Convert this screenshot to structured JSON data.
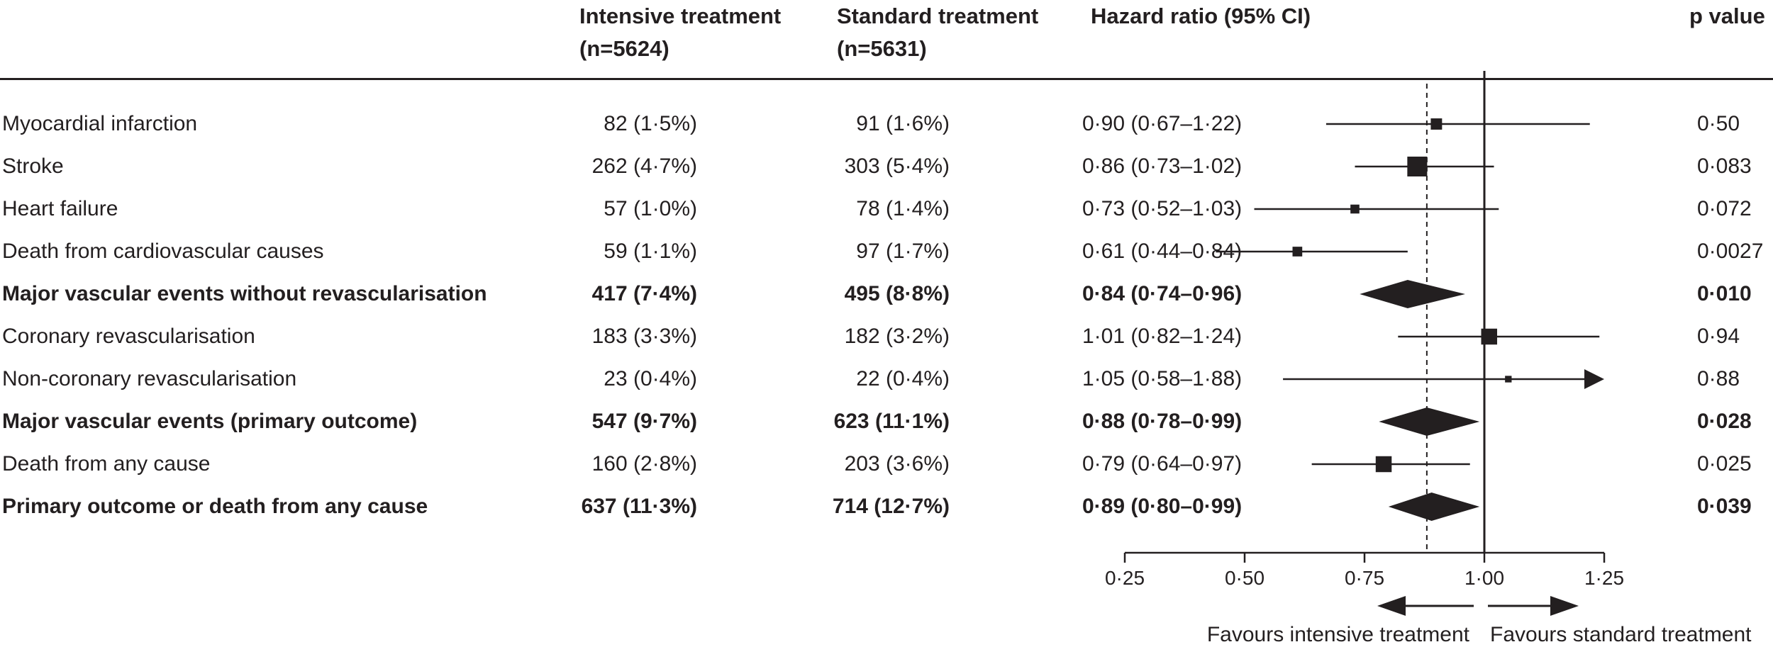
{
  "headers": {
    "intensive": [
      "Intensive treatment",
      "(n=5624)"
    ],
    "standard": [
      "Standard treatment",
      "(n=5631)"
    ],
    "hazard_ratio": "Hazard ratio (95% CI)",
    "p_value": "p value"
  },
  "rows": [
    {
      "label": "Myocardial infarction",
      "intensive": "82 (1·5%)",
      "standard": "91 (1·6%)",
      "hr_text": "0·90 (0·67–1·22)",
      "p": "0·50",
      "bold": false
    },
    {
      "label": "Stroke",
      "intensive": "262 (4·7%)",
      "standard": "303 (5·4%)",
      "hr_text": "0·86 (0·73–1·02)",
      "p": "0·083",
      "bold": false
    },
    {
      "label": "Heart failure",
      "intensive": "57 (1·0%)",
      "standard": "78 (1·4%)",
      "hr_text": "0·73 (0·52–1·03)",
      "p": "0·072",
      "bold": false
    },
    {
      "label": "Death from cardiovascular causes",
      "intensive": "59 (1·1%)",
      "standard": "97 (1·7%)",
      "hr_text": "0·61 (0·44–0·84)",
      "p": "0·0027",
      "bold": false
    },
    {
      "label": "Major vascular events without revascularisation",
      "intensive": "417 (7·4%)",
      "standard": "495 (8·8%)",
      "hr_text": "0·84 (0·74–0·96)",
      "p": "0·010",
      "bold": true
    },
    {
      "label": "Coronary revascularisation",
      "intensive": "183 (3·3%)",
      "standard": "182 (3·2%)",
      "hr_text": "1·01 (0·82–1·24)",
      "p": "0·94",
      "bold": false
    },
    {
      "label": "Non-coronary revascularisation",
      "intensive": "23 (0·4%)",
      "standard": "22 (0·4%)",
      "hr_text": "1·05 (0·58–1·88)",
      "p": "0·88",
      "bold": false
    },
    {
      "label": "Major vascular events (primary outcome)",
      "intensive": "547 (9·7%)",
      "standard": "623 (11·1%)",
      "hr_text": "0·88 (0·78–0·99)",
      "p": "0·028",
      "bold": true
    },
    {
      "label": "Death from any cause",
      "intensive": "160 (2·8%)",
      "standard": "203 (3·6%)",
      "hr_text": "0·79 (0·64–0·97)",
      "p": "0·025",
      "bold": false
    },
    {
      "label": "Primary outcome or death from any cause",
      "intensive": "637 (11·3%)",
      "standard": "714 (12·7%)",
      "hr_text": "0·89 (0·80–0·99)",
      "p": "0·039",
      "bold": true
    }
  ],
  "chart_data": {
    "type": "forest",
    "x_ticks": [
      "0·25",
      "0·50",
      "0·75",
      "1·00",
      "1·25"
    ],
    "x_tick_values": [
      0.25,
      0.5,
      0.75,
      1.0,
      1.25
    ],
    "xlim": [
      0.25,
      1.25
    ],
    "reference_line": 1.0,
    "overall_estimate_line": 0.88,
    "favours_left": "Favours intensive treatment",
    "favours_right": "Favours standard treatment",
    "points": [
      {
        "estimate": 0.9,
        "lower": 0.67,
        "upper": 1.22,
        "marker": "square",
        "weight": 0.45
      },
      {
        "estimate": 0.86,
        "lower": 0.73,
        "upper": 1.02,
        "marker": "square",
        "weight": 1.0
      },
      {
        "estimate": 0.73,
        "lower": 0.52,
        "upper": 1.03,
        "marker": "square",
        "weight": 0.3
      },
      {
        "estimate": 0.61,
        "lower": 0.44,
        "upper": 0.84,
        "marker": "square",
        "weight": 0.35
      },
      {
        "estimate": 0.84,
        "lower": 0.74,
        "upper": 0.96,
        "marker": "diamond"
      },
      {
        "estimate": 1.01,
        "lower": 0.82,
        "upper": 1.24,
        "marker": "square",
        "weight": 0.75
      },
      {
        "estimate": 1.05,
        "lower": 0.58,
        "upper": 1.88,
        "marker": "square",
        "weight": 0.15,
        "arrow_right": true
      },
      {
        "estimate": 0.88,
        "lower": 0.78,
        "upper": 0.99,
        "marker": "diamond"
      },
      {
        "estimate": 0.79,
        "lower": 0.64,
        "upper": 0.97,
        "marker": "square",
        "weight": 0.75
      },
      {
        "estimate": 0.89,
        "lower": 0.8,
        "upper": 0.99,
        "marker": "diamond"
      }
    ]
  }
}
